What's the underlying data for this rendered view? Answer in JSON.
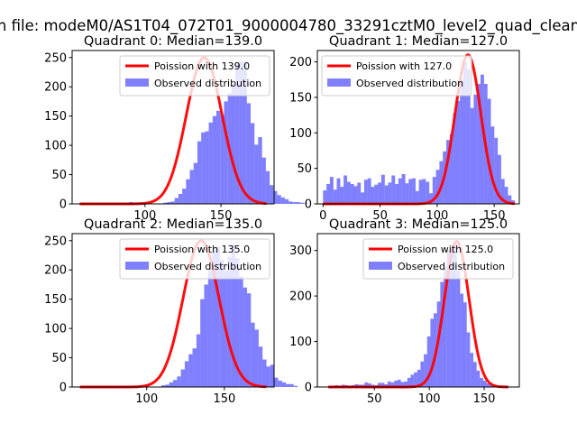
{
  "figure_title": "n file: modeM0/AS1T04_072T01_9000004780_33291cztM0_level2_quad_clean",
  "colors": {
    "poisson": "#ff0000",
    "observed": "#8080ff"
  },
  "chart_data": [
    {
      "type": "bar",
      "title": "Quadrant 0: Median=139.0",
      "xlim": [
        52,
        185
      ],
      "ylim": [
        0,
        262
      ],
      "xticks": [
        100,
        150
      ],
      "yticks": [
        0,
        50,
        100,
        150,
        200,
        250
      ],
      "legend_position": "upper right",
      "poisson": {
        "label": "Poission with 139.0",
        "mean": 139.0,
        "peak": 250,
        "sigma": 11.8,
        "x_range": [
          57,
          180
        ]
      },
      "observed": {
        "label": "Observed distribution",
        "bin_start": 57,
        "bin_width": 2.5,
        "values": [
          1,
          1,
          0,
          0,
          0,
          0,
          0,
          0,
          0,
          0,
          0,
          0,
          2,
          3,
          0,
          0,
          1,
          0,
          0,
          0,
          0,
          0,
          2,
          3,
          4,
          10,
          17,
          26,
          42,
          58,
          70,
          107,
          122,
          124,
          139,
          150,
          159,
          152,
          175,
          189,
          204,
          239,
          244,
          242,
          172,
          138,
          101,
          114,
          79,
          56,
          32,
          22,
          15,
          11,
          8,
          4,
          3,
          3,
          2,
          1
        ]
      }
    },
    {
      "type": "bar",
      "title": "Quadrant 1: Median=127.0",
      "xlim": [
        -5,
        172
      ],
      "ylim": [
        0,
        216
      ],
      "xticks": [
        0,
        50,
        100,
        150
      ],
      "yticks": [
        0,
        50,
        100,
        150,
        200
      ],
      "legend_position": "upper left",
      "poisson": {
        "label": "Poission with 127.0",
        "mean": 127.0,
        "peak": 210,
        "sigma": 11.3,
        "x_range": [
          0,
          168
        ]
      },
      "observed": {
        "label": "Observed distribution",
        "bin_start": 0,
        "bin_width": 3,
        "values": [
          19,
          28,
          38,
          20,
          36,
          24,
          40,
          31,
          28,
          25,
          30,
          16,
          34,
          36,
          24,
          27,
          30,
          41,
          26,
          30,
          40,
          28,
          36,
          42,
          29,
          35,
          36,
          18,
          34,
          35,
          31,
          15,
          38,
          48,
          60,
          74,
          90,
          98,
          128,
          145,
          175,
          199,
          190,
          135,
          154,
          169,
          182,
          169,
          148,
          109,
          93,
          69,
          35,
          24,
          12,
          5
        ]
      }
    },
    {
      "type": "bar",
      "title": "Quadrant 2: Median=135.0",
      "xlim": [
        52,
        182
      ],
      "ylim": [
        0,
        262
      ],
      "xticks": [
        100,
        150
      ],
      "yticks": [
        0,
        50,
        100,
        150,
        200,
        250
      ],
      "legend_position": "upper right",
      "poisson": {
        "label": "Poission with 135.0",
        "mean": 135.0,
        "peak": 250,
        "sigma": 11.6,
        "x_range": [
          57,
          177
        ]
      },
      "observed": {
        "label": "Observed distribution",
        "bin_start": 57,
        "bin_width": 2.5,
        "values": [
          0,
          0,
          0,
          0,
          0,
          0,
          0,
          0,
          0,
          0,
          1,
          2,
          0,
          2,
          1,
          0,
          0,
          0,
          0,
          0,
          0,
          3,
          4,
          8,
          12,
          18,
          30,
          44,
          56,
          66,
          90,
          150,
          175,
          199,
          234,
          240,
          218,
          199,
          222,
          244,
          220,
          189,
          170,
          160,
          110,
          98,
          69,
          47,
          35,
          38,
          16,
          11,
          8,
          5,
          5,
          2,
          0,
          0
        ]
      }
    },
    {
      "type": "bar",
      "title": "Quadrant 3: Median=125.0",
      "xlim": [
        -2,
        182
      ],
      "ylim": [
        0,
        337
      ],
      "xticks": [
        50,
        100,
        150
      ],
      "yticks": [
        0,
        100,
        200,
        300
      ],
      "legend_position": "upper right",
      "poisson": {
        "label": "Poission with 125.0",
        "mean": 125.0,
        "peak": 320,
        "sigma": 11.2,
        "x_range": [
          8,
          172
        ]
      },
      "observed": {
        "label": "Observed distribution",
        "bin_start": 8,
        "bin_width": 3,
        "values": [
          3,
          2,
          4,
          3,
          5,
          4,
          3,
          4,
          6,
          5,
          5,
          10,
          8,
          5,
          4,
          9,
          9,
          6,
          12,
          10,
          14,
          16,
          11,
          12,
          20,
          27,
          32,
          38,
          56,
          72,
          111,
          150,
          162,
          188,
          231,
          265,
          300,
          307,
          314,
          257,
          205,
          186,
          120,
          75,
          55,
          36,
          20,
          14,
          8,
          5,
          4,
          3,
          2,
          1,
          1
        ]
      }
    }
  ]
}
